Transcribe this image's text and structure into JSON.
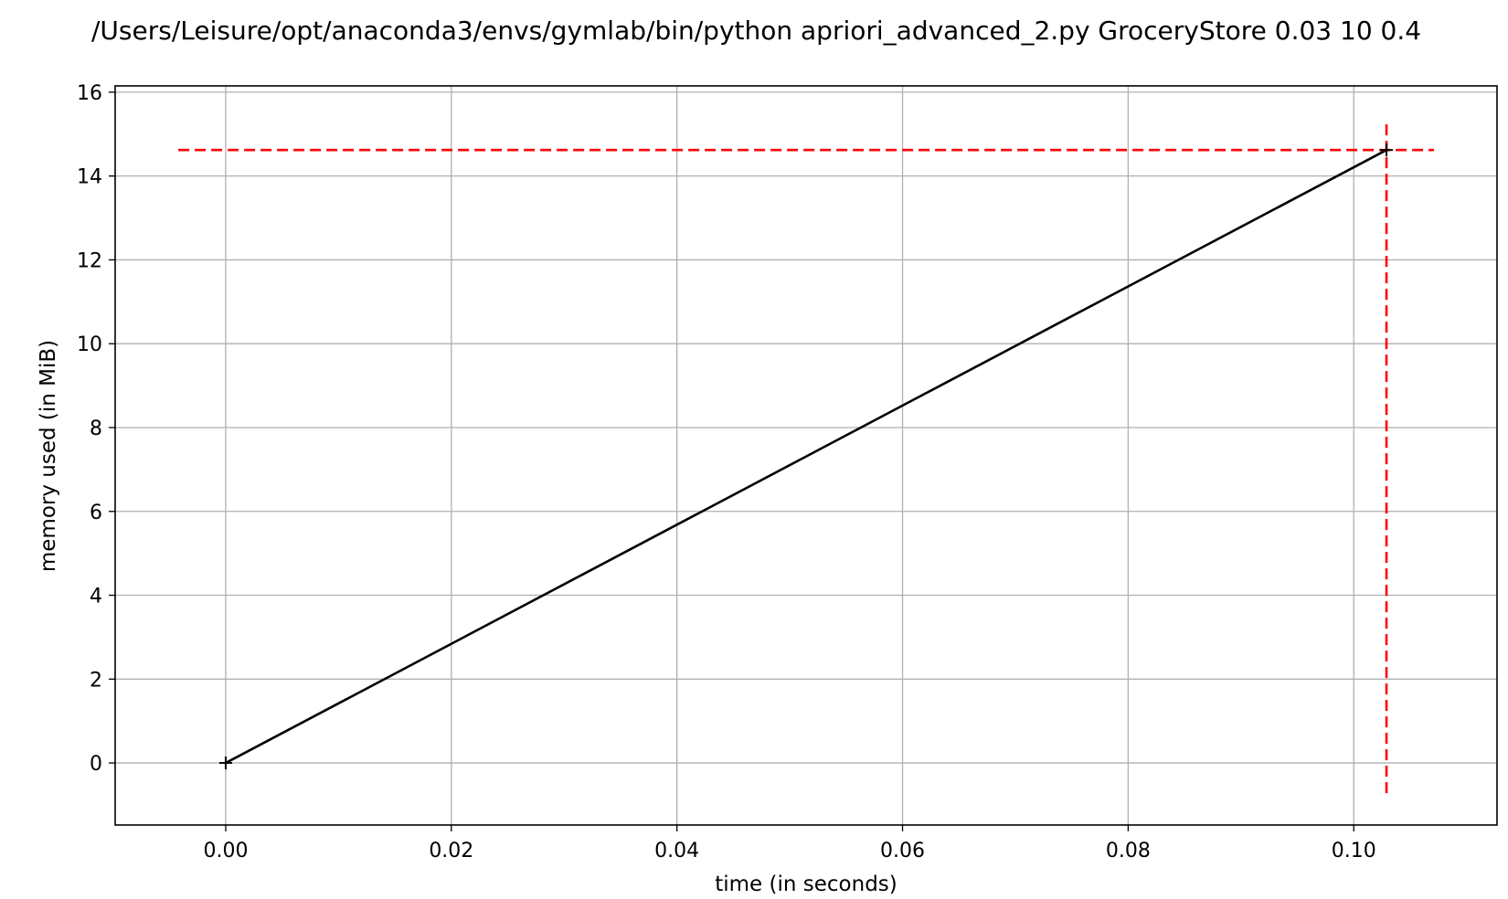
{
  "chart_data": {
    "type": "line",
    "title": "/Users/Leisure/opt/anaconda3/envs/gymlab/bin/python apriori_advanced_2.py GroceryStore 0.03 10 0.4",
    "xlabel": "time (in seconds)",
    "ylabel": "memory used (in MiB)",
    "xlim": [
      -0.0098,
      0.1127
    ],
    "ylim": [
      -1.48,
      16.15
    ],
    "xticks": [
      0.0,
      0.02,
      0.04,
      0.06,
      0.08,
      0.1
    ],
    "xtick_labels": [
      "0.00",
      "0.02",
      "0.04",
      "0.06",
      "0.08",
      "0.10"
    ],
    "yticks": [
      0,
      2,
      4,
      6,
      8,
      10,
      12,
      14,
      16
    ],
    "ytick_labels": [
      "0",
      "2",
      "4",
      "6",
      "8",
      "10",
      "12",
      "14",
      "16"
    ],
    "grid": true,
    "series": [
      {
        "color": "#000000",
        "marker": "+",
        "x": [
          0.0,
          0.1029
        ],
        "y": [
          0.0,
          14.62
        ]
      }
    ],
    "reference_lines": [
      {
        "orientation": "horizontal",
        "value": 14.62,
        "from": -0.0042,
        "to": 0.1071,
        "color": "#ff0000",
        "style": "dashed"
      },
      {
        "orientation": "vertical",
        "value": 0.1029,
        "from": -0.72,
        "to": 15.35,
        "color": "#ff0000",
        "style": "dashed"
      }
    ]
  }
}
